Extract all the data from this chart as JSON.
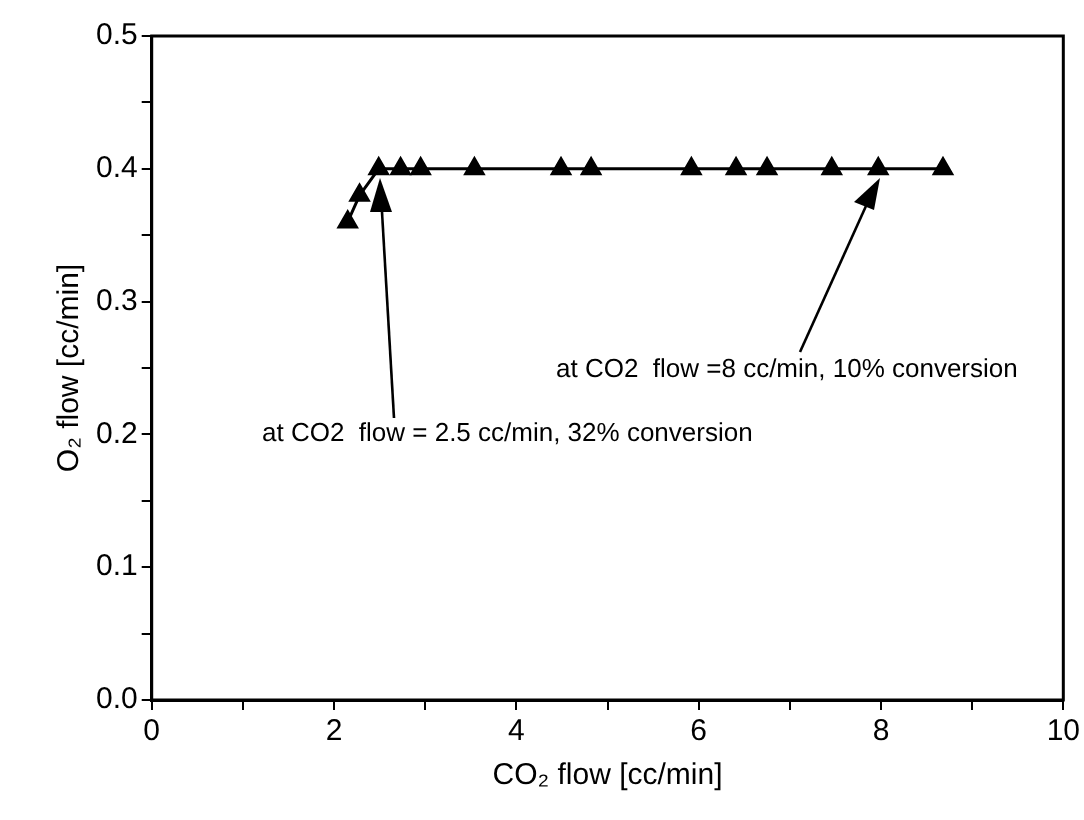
{
  "chart_data": {
    "type": "line",
    "xlabel": "CO₂ flow [cc/min]",
    "ylabel": "O₂ flow [cc/min]",
    "x": [
      2.15,
      2.28,
      2.49,
      2.73,
      2.95,
      3.54,
      4.49,
      4.82,
      5.92,
      6.41,
      6.75,
      7.46,
      7.97,
      8.68
    ],
    "series": [
      {
        "color": "#000000",
        "values": [
          0.36,
          0.38,
          0.4,
          0.4,
          0.4,
          0.4,
          0.4,
          0.4,
          0.4,
          0.4,
          0.4,
          0.4,
          0.4,
          0.4
        ]
      }
    ],
    "xlim": [
      0,
      10
    ],
    "xticks": [
      0,
      {
        "value": 1,
        "label": null
      },
      2,
      {
        "value": 3,
        "label": null
      },
      4,
      {
        "value": 5,
        "label": null
      },
      6,
      {
        "value": 7,
        "label": null
      },
      8,
      {
        "value": 9,
        "label": null
      },
      10
    ],
    "ylim": [
      0,
      0.5
    ],
    "yticks": [
      {
        "value": 0,
        "label": "0.0"
      },
      {
        "value": 0.05,
        "label": null
      },
      0.1,
      {
        "value": 0.15,
        "label": null
      },
      0.2,
      {
        "value": 0.25,
        "label": null
      },
      0.3,
      {
        "value": 0.35,
        "label": null
      },
      0.4,
      {
        "value": 0.45,
        "label": null
      },
      0.5
    ],
    "marker": "triangle",
    "line_style": "solid",
    "grid": false,
    "legend": false,
    "annotations": [
      "at CO2  flow =8 cc/min, 10% conversion",
      "at CO2  flow = 2.5 cc/min, 32% conversion"
    ]
  }
}
